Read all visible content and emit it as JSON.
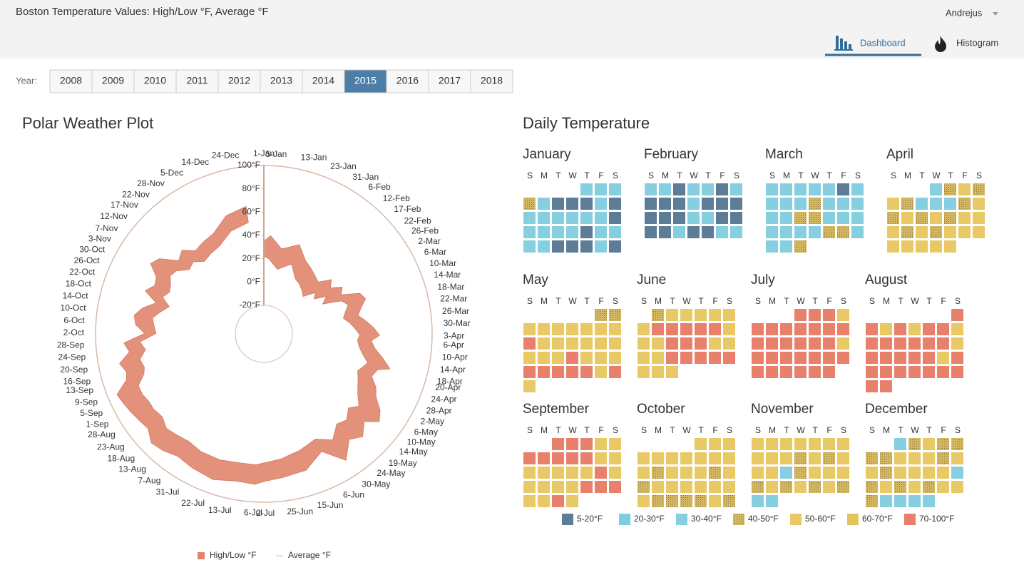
{
  "header": {
    "title": "Boston Temperature Values: High/Low °F, Average °F",
    "user": "Andrejus",
    "tabs": [
      "Dashboard",
      "Histogram"
    ],
    "active_tab": 0
  },
  "year_selector": {
    "label": "Year:",
    "years": [
      "2008",
      "2009",
      "2010",
      "2011",
      "2012",
      "2013",
      "2014",
      "2015",
      "2016",
      "2017",
      "2018"
    ],
    "selected": 7
  },
  "chart_data": {
    "type": "polar",
    "title": "Polar Weather Plot",
    "x": [
      "1-Jan",
      "5-Jan",
      "13-Jan",
      "23-Jan",
      "31-Jan",
      "6-Feb",
      "12-Feb",
      "17-Feb",
      "22-Feb",
      "26-Feb",
      "2-Mar",
      "6-Mar",
      "10-Mar",
      "14-Mar",
      "18-Mar",
      "22-Mar",
      "26-Mar",
      "30-Mar",
      "3-Apr",
      "6-Apr",
      "10-Apr",
      "14-Apr",
      "18-Apr",
      "20-Apr",
      "24-Apr",
      "28-Apr",
      "2-May",
      "6-May",
      "10-May",
      "14-May",
      "19-May",
      "24-May",
      "30-May",
      "6-Jun",
      "15-Jun",
      "25-Jun",
      "2-Jul",
      "6-Jul",
      "13-Jul",
      "22-Jul",
      "31-Jul",
      "7-Aug",
      "13-Aug",
      "18-Aug",
      "23-Aug",
      "28-Aug",
      "1-Sep",
      "5-Sep",
      "9-Sep",
      "13-Sep",
      "16-Sep",
      "20-Sep",
      "24-Sep",
      "28-Sep",
      "2-Oct",
      "6-Oct",
      "10-Oct",
      "14-Oct",
      "18-Oct",
      "22-Oct",
      "26-Oct",
      "30-Oct",
      "3-Nov",
      "7-Nov",
      "12-Nov",
      "17-Nov",
      "22-Nov",
      "28-Nov",
      "5-Dec",
      "14-Dec",
      "24-Dec"
    ],
    "series": [
      {
        "name": "High/Low °F",
        "color": "#e0856b",
        "high": [
          35,
          40,
          30,
          38,
          28,
          25,
          22,
          20,
          30,
          25,
          34,
          30,
          45,
          48,
          42,
          38,
          44,
          50,
          55,
          48,
          52,
          60,
          68,
          58,
          55,
          62,
          66,
          75,
          80,
          70,
          78,
          72,
          85,
          68,
          78,
          80,
          82,
          85,
          84,
          88,
          86,
          84,
          88,
          90,
          84,
          86,
          88,
          90,
          92,
          80,
          78,
          82,
          72,
          76,
          58,
          66,
          68,
          62,
          52,
          64,
          58,
          60,
          70,
          66,
          52,
          56,
          48,
          50,
          52,
          62,
          66
        ],
        "low": [
          22,
          20,
          12,
          20,
          10,
          8,
          5,
          2,
          12,
          8,
          18,
          12,
          28,
          32,
          28,
          25,
          30,
          34,
          38,
          36,
          38,
          42,
          48,
          46,
          42,
          45,
          48,
          52,
          58,
          52,
          58,
          55,
          64,
          56,
          60,
          64,
          66,
          68,
          68,
          70,
          70,
          68,
          70,
          72,
          68,
          70,
          70,
          72,
          72,
          64,
          62,
          64,
          58,
          62,
          48,
          50,
          52,
          46,
          40,
          48,
          44,
          46,
          50,
          48,
          40,
          42,
          36,
          38,
          40,
          48,
          52
        ]
      },
      {
        "name": "Average °F",
        "color": "#d2b4a6"
      }
    ],
    "ylim": [
      -20,
      100
    ],
    "yticks": [
      {
        "value": -20,
        "label": "-20°F"
      },
      {
        "value": 0,
        "label": "0°F"
      },
      {
        "value": 20,
        "label": "20°F"
      },
      {
        "value": 40,
        "label": "40°F"
      },
      {
        "value": 60,
        "label": "60°F"
      },
      {
        "value": 80,
        "label": "80°F"
      },
      {
        "value": 100,
        "label": "100°F"
      }
    ]
  },
  "calendar": {
    "title": "Daily Temperature",
    "weekdays": [
      "S",
      "M",
      "T",
      "W",
      "T",
      "F",
      "S"
    ],
    "legend": [
      {
        "label": "5-20°F",
        "color": "#5d7c98"
      },
      {
        "label": "20-30°F",
        "color": "#7ccde0"
      },
      {
        "label": "30-40°F",
        "color": "#86cfe0"
      },
      {
        "label": "40-50°F",
        "color": "#d5b862",
        "texture": "dotted"
      },
      {
        "label": "50-60°F",
        "color": "#e8c965"
      },
      {
        "label": "60-70°F",
        "color": "#e4c45c"
      },
      {
        "label": "70-100°F",
        "color": "#e8806b"
      }
    ],
    "months": [
      {
        "name": "January",
        "days": [
          2,
          2,
          2,
          3,
          2,
          0,
          0,
          0,
          2,
          0,
          2,
          2,
          2,
          2,
          2,
          2,
          0,
          2,
          2,
          2,
          2,
          0,
          2,
          2,
          2,
          2,
          0,
          0,
          0,
          2,
          0
        ]
      },
      {
        "name": "February",
        "days": [
          2,
          2,
          0,
          2,
          2,
          0,
          2,
          0,
          0,
          0,
          2,
          0,
          0,
          0,
          0,
          0,
          0,
          2,
          2,
          0,
          0,
          0,
          0,
          2,
          0,
          0,
          2,
          2
        ]
      },
      {
        "name": "March",
        "days": [
          2,
          2,
          2,
          2,
          2,
          0,
          2,
          2,
          2,
          2,
          3,
          2,
          2,
          2,
          2,
          2,
          3,
          3,
          2,
          2,
          2,
          2,
          2,
          2,
          2,
          3,
          3,
          2,
          2,
          2,
          3
        ]
      },
      {
        "name": "April",
        "days": [
          2,
          3,
          4,
          3,
          4,
          3,
          2,
          2,
          2,
          3,
          4,
          3,
          4,
          3,
          4,
          3,
          4,
          4,
          4,
          3,
          4,
          3,
          4,
          4,
          4,
          4,
          4,
          4,
          4,
          4
        ]
      },
      {
        "name": "May",
        "days": [
          3,
          3,
          4,
          4,
          4,
          4,
          4,
          4,
          4,
          6,
          4,
          4,
          4,
          4,
          4,
          4,
          4,
          4,
          4,
          6,
          4,
          4,
          4,
          6,
          6,
          6,
          6,
          6,
          4,
          6,
          4
        ]
      },
      {
        "name": "June",
        "days": [
          3,
          4,
          4,
          4,
          4,
          4,
          4,
          6,
          6,
          6,
          6,
          6,
          4,
          4,
          4,
          6,
          6,
          6,
          4,
          4,
          4,
          4,
          6,
          6,
          6,
          6,
          6,
          4,
          4,
          4
        ]
      },
      {
        "name": "July",
        "days": [
          6,
          6,
          6,
          4,
          6,
          6,
          6,
          6,
          6,
          6,
          6,
          6,
          6,
          6,
          6,
          6,
          6,
          4,
          6,
          6,
          6,
          6,
          6,
          6,
          6,
          6,
          6,
          6,
          6,
          6,
          6
        ]
      },
      {
        "name": "August",
        "days": [
          6,
          6,
          4,
          6,
          4,
          6,
          6,
          4,
          6,
          6,
          6,
          6,
          6,
          6,
          4,
          6,
          6,
          6,
          6,
          6,
          4,
          6,
          6,
          6,
          6,
          6,
          6,
          6,
          6,
          6,
          6
        ]
      },
      {
        "name": "September",
        "days": [
          6,
          6,
          6,
          4,
          4,
          6,
          6,
          6,
          6,
          6,
          4,
          4,
          4,
          4,
          4,
          4,
          4,
          6,
          4,
          4,
          4,
          4,
          4,
          6,
          6,
          6,
          4,
          4,
          6,
          4
        ]
      },
      {
        "name": "October",
        "days": [
          4,
          4,
          4,
          4,
          4,
          4,
          4,
          4,
          4,
          4,
          4,
          3,
          4,
          4,
          4,
          3,
          4,
          3,
          4,
          4,
          4,
          4,
          4,
          4,
          4,
          3,
          3,
          3,
          3,
          4,
          3
        ]
      },
      {
        "name": "November",
        "days": [
          4,
          4,
          4,
          4,
          4,
          4,
          4,
          4,
          4,
          4,
          3,
          4,
          3,
          4,
          4,
          4,
          2,
          3,
          4,
          4,
          4,
          3,
          4,
          3,
          4,
          3,
          4,
          3,
          2,
          2
        ]
      },
      {
        "name": "December",
        "days": [
          2,
          3,
          4,
          3,
          3,
          3,
          3,
          4,
          4,
          4,
          3,
          4,
          4,
          3,
          4,
          4,
          4,
          4,
          2,
          3,
          4,
          3,
          4,
          3,
          4,
          4,
          3,
          2,
          2,
          2,
          2
        ]
      }
    ]
  }
}
